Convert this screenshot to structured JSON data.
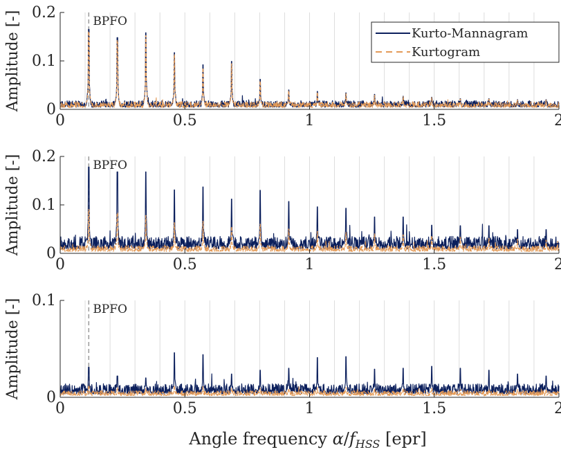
{
  "figure": {
    "xlabel": "Angle frequency α/f_HSS [epr]",
    "xlabel_parts": {
      "main": "Angle frequency ",
      "alpha": "α",
      "slash": "/",
      "f": "f",
      "sub": "HSS",
      "unit": " [epr]"
    }
  },
  "legend": {
    "entries": [
      {
        "label": "Kurto-Mannagram",
        "color": "#0b1f5c",
        "style": "solid"
      },
      {
        "label": "Kurtogram",
        "color": "#e39a57",
        "style": "dashed"
      }
    ]
  },
  "colors": {
    "kurto_mannagram": "#0b1f5c",
    "kurtogram": "#e39a57",
    "grid": "#dcdcdc",
    "bpfo_marker": "#9a9a9a",
    "axis": "#262626"
  },
  "chart_data": [
    {
      "type": "line",
      "xlabel": "",
      "ylabel": "Amplitude [-]",
      "ylim": [
        0,
        0.2
      ],
      "xlim": [
        0,
        2
      ],
      "xticks": [
        "0",
        "0.5",
        "1",
        "1.5",
        "2"
      ],
      "yticks": [
        "0",
        "0.1",
        "0.2"
      ],
      "grid": "x-only",
      "bpfo": {
        "x": 0.1146,
        "label": "BPFO"
      },
      "harmonic_spacing": 0.1146,
      "legend": "top-right",
      "series": [
        {
          "name": "Kurto-Mannagram",
          "noise": 0.018,
          "peaks": [
            0.165,
            0.148,
            0.158,
            0.117,
            0.092,
            0.099,
            0.062,
            0.04,
            0.037,
            0.034,
            0.031,
            0.027,
            0.025,
            0.022,
            0.022,
            0.02,
            0.02
          ]
        },
        {
          "name": "Kurtogram",
          "noise": 0.016,
          "peaks": [
            0.16,
            0.142,
            0.152,
            0.113,
            0.085,
            0.094,
            0.058,
            0.038,
            0.035,
            0.032,
            0.029,
            0.026,
            0.024,
            0.021,
            0.021,
            0.019,
            0.019
          ]
        }
      ]
    },
    {
      "type": "line",
      "xlabel": "",
      "ylabel": "Amplitude [-]",
      "ylim": [
        0,
        0.2
      ],
      "xlim": [
        0,
        2
      ],
      "xticks": [
        "0",
        "0.5",
        "1",
        "1.5",
        "2"
      ],
      "yticks": [
        "0",
        "0.1",
        "0.2"
      ],
      "grid": "x-only",
      "bpfo": {
        "x": 0.1146,
        "label": "BPFO"
      },
      "harmonic_spacing": 0.1146,
      "series": [
        {
          "name": "Kurto-Mannagram",
          "noise": 0.035,
          "peaks": [
            0.178,
            0.168,
            0.168,
            0.131,
            0.137,
            0.112,
            0.13,
            0.107,
            0.096,
            0.093,
            0.075,
            0.075,
            0.058,
            0.057,
            0.057,
            0.049,
            0.049
          ]
        },
        {
          "name": "Kurtogram",
          "noise": 0.016,
          "peaks": [
            0.09,
            0.083,
            0.078,
            0.063,
            0.066,
            0.055,
            0.06,
            0.05,
            0.045,
            0.043,
            0.04,
            0.038,
            0.036,
            0.033,
            0.031,
            0.029,
            0.027
          ]
        }
      ]
    },
    {
      "type": "line",
      "xlabel": "Angle frequency α/f_HSS [epr]",
      "ylabel": "Amplitude [-]",
      "ylim": [
        0,
        0.1
      ],
      "xlim": [
        0,
        2
      ],
      "xticks": [
        "0",
        "0.5",
        "1",
        "1.5",
        "2"
      ],
      "yticks": [
        "0",
        "0.1"
      ],
      "grid": "x-only",
      "bpfo": {
        "x": 0.1146,
        "label": "BPFO"
      },
      "harmonic_spacing": 0.1146,
      "series": [
        {
          "name": "Kurto-Mannagram",
          "noise": 0.014,
          "peaks": [
            0.031,
            0.022,
            0.02,
            0.046,
            0.044,
            0.024,
            0.028,
            0.03,
            0.041,
            0.042,
            0.029,
            0.03,
            0.032,
            0.03,
            0.028,
            0.024,
            0.022
          ]
        },
        {
          "name": "Kurtogram",
          "noise": 0.007,
          "peaks": [
            0.012,
            0.01,
            0.009,
            0.012,
            0.011,
            0.009,
            0.009,
            0.009,
            0.01,
            0.01,
            0.009,
            0.009,
            0.009,
            0.008,
            0.008,
            0.008,
            0.008
          ]
        }
      ]
    }
  ]
}
